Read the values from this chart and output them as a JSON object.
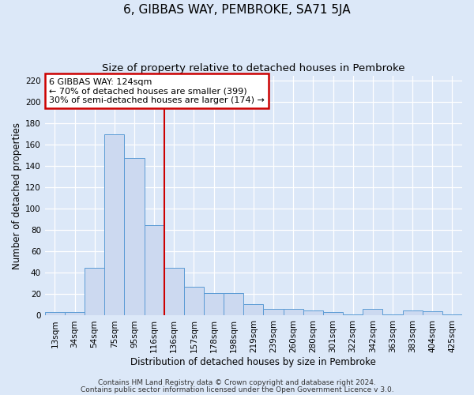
{
  "title": "6, GIBBAS WAY, PEMBROKE, SA71 5JA",
  "subtitle": "Size of property relative to detached houses in Pembroke",
  "xlabel": "Distribution of detached houses by size in Pembroke",
  "ylabel": "Number of detached properties",
  "bar_labels": [
    "13sqm",
    "34sqm",
    "54sqm",
    "75sqm",
    "95sqm",
    "116sqm",
    "136sqm",
    "157sqm",
    "178sqm",
    "198sqm",
    "219sqm",
    "239sqm",
    "260sqm",
    "280sqm",
    "301sqm",
    "322sqm",
    "342sqm",
    "363sqm",
    "383sqm",
    "404sqm",
    "425sqm"
  ],
  "bar_values": [
    3,
    3,
    45,
    170,
    148,
    85,
    45,
    27,
    21,
    21,
    11,
    6,
    6,
    5,
    3,
    1,
    6,
    1,
    5,
    4,
    1
  ],
  "bar_color": "#ccd9f0",
  "bar_edge_color": "#5b9bd5",
  "vline_x": 5.5,
  "vline_color": "#cc0000",
  "ylim_max": 225,
  "yticks": [
    0,
    20,
    40,
    60,
    80,
    100,
    120,
    140,
    160,
    180,
    200,
    220
  ],
  "annotation_line1": "6 GIBBAS WAY: 124sqm",
  "annotation_line2": "← 70% of detached houses are smaller (399)",
  "annotation_line3": "30% of semi-detached houses are larger (174) →",
  "annotation_box_color": "#ffffff",
  "annotation_box_edge_color": "#cc0000",
  "footer_line1": "Contains HM Land Registry data © Crown copyright and database right 2024.",
  "footer_line2": "Contains public sector information licensed under the Open Government Licence v 3.0.",
  "bg_color": "#dce8f8",
  "plot_bg_color": "#dce8f8",
  "grid_color": "#ffffff",
  "title_fontsize": 11,
  "subtitle_fontsize": 9.5,
  "axis_label_fontsize": 8.5,
  "tick_fontsize": 7.5,
  "annotation_fontsize": 8,
  "footer_fontsize": 6.5
}
